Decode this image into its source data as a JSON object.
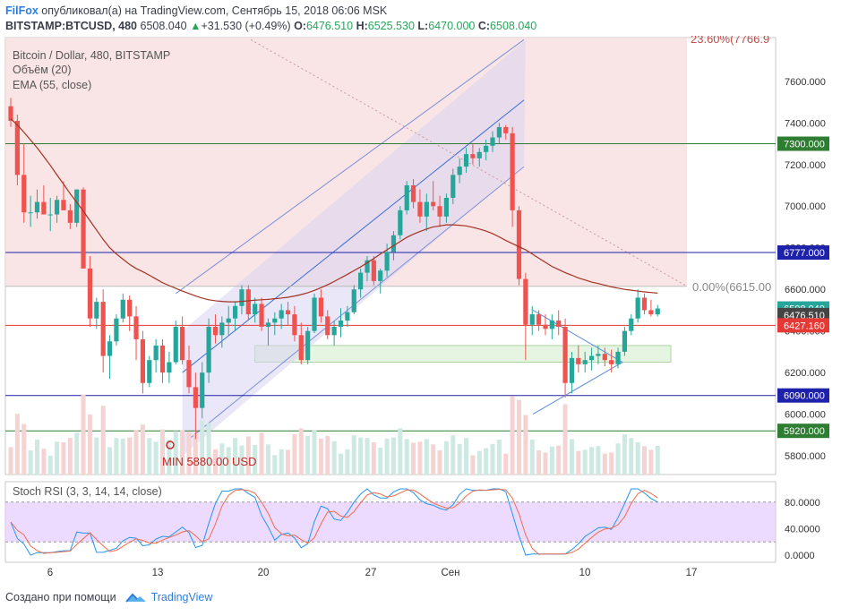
{
  "header": {
    "brand": "FilFox",
    "published_text": "опубликовал(а) на TradingView.com, Сентябрь 15, 2018 06:06 MSK",
    "symbol": "BITSTAMP:BTCUSD, 480",
    "price": "6508.040",
    "change": "+31.530 (+0.49%)",
    "o_label": "O:",
    "o_value": "6476.510",
    "h_label": "H:",
    "h_value": "6525.530",
    "l_label": "L:",
    "l_value": "6470.000",
    "c_label": "C:",
    "c_value": "6508.040"
  },
  "legend": {
    "title": "Bitcoin / Dollar, 480, BITSTAMP",
    "volume": "Объём (20)",
    "ema": "EMA (55, close)",
    "stoch": "Stoch RSI (3, 3, 14, 14, close)"
  },
  "annotations": {
    "fib_top": "23.60%(7766.9",
    "fib_zero": "0.00%(6615.00",
    "min_label": "MIN 5880.00 USD"
  },
  "footer": {
    "created_with": "Создано при помощи",
    "tradingview": "TradingView"
  },
  "chart_data": {
    "type": "candlestick",
    "y_axis": {
      "ticks": [
        5800,
        6000,
        6200,
        6400,
        6600,
        6800,
        7000,
        7200,
        7400,
        7600
      ],
      "range": [
        5710,
        7810
      ]
    },
    "x_axis": {
      "labels": [
        "6",
        "13",
        "20",
        "27",
        "Сен",
        "10",
        "17"
      ]
    },
    "price_labels": [
      {
        "value": 7300,
        "text": "7300.000",
        "color": "#2e7d32"
      },
      {
        "value": 6777,
        "text": "6777.000",
        "color": "#1e22aa"
      },
      {
        "value": 6508.04,
        "text": "6508.040",
        "color": "#26a69a"
      },
      {
        "value": 6476.51,
        "text": "6476.510",
        "color": "#444444"
      },
      {
        "value": 6427.16,
        "text": "6427.160",
        "color": "#e53935"
      },
      {
        "value": 6090,
        "text": "6090.000",
        "color": "#1e22aa"
      },
      {
        "value": 5920,
        "text": "5920.000",
        "color": "#2e7d32"
      }
    ],
    "horizontal_lines": [
      {
        "value": 7300,
        "color": "#2e7d32"
      },
      {
        "value": 6777,
        "color": "#1e22aa"
      },
      {
        "value": 6427.16,
        "color": "#e53935"
      },
      {
        "value": 6090,
        "color": "#1e22aa"
      },
      {
        "value": 5920,
        "color": "#2e7d32"
      }
    ],
    "support_zone": [
      6250,
      6330
    ],
    "stoch_axis": {
      "ticks": [
        0,
        40,
        80
      ],
      "labels": [
        "0.0000",
        "40.0000",
        "80.0000"
      ],
      "band": [
        20,
        80
      ]
    },
    "colors": {
      "up": "#26a69a",
      "down": "#ef5350",
      "ema": "#a33222",
      "stoch_k": "#2196f3",
      "stoch_d": "#ef6c4d",
      "channel": "#7b8fd8",
      "fib_zone": "#f7dede",
      "band": "#e6ccff"
    },
    "candles": [
      [
        7480,
        7520,
        7380,
        7410
      ],
      [
        7410,
        7440,
        7100,
        7150
      ],
      [
        7150,
        7300,
        6920,
        6970
      ],
      [
        6970,
        7050,
        6900,
        6970
      ],
      [
        6970,
        7080,
        6940,
        7020
      ],
      [
        7020,
        7100,
        6980,
        6960
      ],
      [
        6960,
        7040,
        6880,
        6960
      ],
      [
        6960,
        7050,
        6920,
        7030
      ],
      [
        7030,
        7120,
        6980,
        6980
      ],
      [
        6980,
        7010,
        6890,
        6920
      ],
      [
        6920,
        7080,
        6900,
        7080
      ],
      [
        7080,
        7090,
        6700,
        6700
      ],
      [
        6700,
        6760,
        6420,
        6460
      ],
      [
        6460,
        6560,
        6410,
        6540
      ],
      [
        6540,
        6600,
        6200,
        6280
      ],
      [
        6280,
        6380,
        6170,
        6350
      ],
      [
        6350,
        6480,
        6330,
        6460
      ],
      [
        6460,
        6580,
        6440,
        6550
      ],
      [
        6550,
        6570,
        6400,
        6470
      ],
      [
        6470,
        6520,
        6260,
        6360
      ],
      [
        6360,
        6400,
        6100,
        6150
      ],
      [
        6150,
        6280,
        6130,
        6260
      ],
      [
        6260,
        6360,
        6200,
        6330
      ],
      [
        6330,
        6360,
        6150,
        6200
      ],
      [
        6200,
        6300,
        6150,
        6250
      ],
      [
        6250,
        6450,
        6240,
        6420
      ],
      [
        6420,
        6470,
        6240,
        6260
      ],
      [
        6260,
        6330,
        6100,
        6130
      ],
      [
        6130,
        6200,
        5880,
        6030
      ],
      [
        6030,
        6250,
        5980,
        6200
      ],
      [
        6200,
        6460,
        6150,
        6420
      ],
      [
        6420,
        6480,
        6340,
        6380
      ],
      [
        6380,
        6470,
        6320,
        6440
      ],
      [
        6440,
        6520,
        6380,
        6460
      ],
      [
        6460,
        6540,
        6400,
        6520
      ],
      [
        6520,
        6620,
        6480,
        6600
      ],
      [
        6600,
        6620,
        6450,
        6480
      ],
      [
        6480,
        6560,
        6440,
        6530
      ],
      [
        6530,
        6560,
        6400,
        6420
      ],
      [
        6420,
        6460,
        6330,
        6440
      ],
      [
        6440,
        6490,
        6380,
        6460
      ],
      [
        6460,
        6530,
        6410,
        6500
      ],
      [
        6500,
        6540,
        6430,
        6480
      ],
      [
        6480,
        6520,
        6350,
        6380
      ],
      [
        6380,
        6440,
        6240,
        6260
      ],
      [
        6260,
        6420,
        6240,
        6400
      ],
      [
        6400,
        6580,
        6390,
        6560
      ],
      [
        6560,
        6600,
        6440,
        6470
      ],
      [
        6470,
        6500,
        6360,
        6380
      ],
      [
        6380,
        6450,
        6330,
        6420
      ],
      [
        6420,
        6510,
        6370,
        6450
      ],
      [
        6450,
        6520,
        6420,
        6490
      ],
      [
        6490,
        6620,
        6480,
        6600
      ],
      [
        6600,
        6700,
        6560,
        6680
      ],
      [
        6680,
        6760,
        6640,
        6740
      ],
      [
        6740,
        6760,
        6620,
        6640
      ],
      [
        6640,
        6700,
        6580,
        6690
      ],
      [
        6690,
        6820,
        6660,
        6780
      ],
      [
        6780,
        6880,
        6740,
        6860
      ],
      [
        6860,
        7000,
        6840,
        6980
      ],
      [
        6980,
        7120,
        6960,
        7100
      ],
      [
        7100,
        7130,
        6990,
        7020
      ],
      [
        7020,
        7080,
        6920,
        6950
      ],
      [
        6950,
        7060,
        6880,
        7020
      ],
      [
        7020,
        7120,
        6980,
        7000
      ],
      [
        7000,
        7050,
        6900,
        6950
      ],
      [
        6950,
        7060,
        6920,
        7040
      ],
      [
        7040,
        7180,
        7010,
        7150
      ],
      [
        7150,
        7230,
        7110,
        7190
      ],
      [
        7190,
        7280,
        7160,
        7250
      ],
      [
        7250,
        7300,
        7200,
        7230
      ],
      [
        7230,
        7280,
        7190,
        7260
      ],
      [
        7260,
        7320,
        7220,
        7290
      ],
      [
        7290,
        7360,
        7260,
        7330
      ],
      [
        7330,
        7400,
        7300,
        7380
      ],
      [
        7380,
        7390,
        7320,
        7350
      ],
      [
        7350,
        7380,
        6900,
        6980
      ],
      [
        6980,
        7000,
        6620,
        6650
      ],
      [
        6650,
        6680,
        6260,
        6430
      ],
      [
        6430,
        6520,
        6380,
        6480
      ],
      [
        6480,
        6500,
        6400,
        6430
      ],
      [
        6430,
        6480,
        6380,
        6410
      ],
      [
        6410,
        6480,
        6360,
        6450
      ],
      [
        6450,
        6500,
        6380,
        6420
      ],
      [
        6420,
        6460,
        6080,
        6150
      ],
      [
        6150,
        6300,
        6100,
        6270
      ],
      [
        6270,
        6330,
        6200,
        6240
      ],
      [
        6240,
        6300,
        6200,
        6260
      ],
      [
        6260,
        6320,
        6210,
        6280
      ],
      [
        6280,
        6330,
        6240,
        6290
      ],
      [
        6290,
        6320,
        6230,
        6260
      ],
      [
        6260,
        6310,
        6200,
        6240
      ],
      [
        6240,
        6320,
        6220,
        6300
      ],
      [
        6300,
        6420,
        6280,
        6400
      ],
      [
        6400,
        6480,
        6380,
        6460
      ],
      [
        6460,
        6600,
        6440,
        6560
      ],
      [
        6560,
        6580,
        6480,
        6500
      ],
      [
        6500,
        6550,
        6470,
        6480
      ],
      [
        6480,
        6525,
        6470,
        6508
      ]
    ],
    "ema": [
      7420,
      7390,
      7355,
      7318,
      7280,
      7238,
      7196,
      7150,
      7106,
      7060,
      7018,
      6976,
      6930,
      6885,
      6840,
      6800,
      6770,
      6745,
      6720,
      6700,
      6685,
      6668,
      6650,
      6632,
      6618,
      6605,
      6592,
      6580,
      6568,
      6558,
      6550,
      6545,
      6542,
      6540,
      6540,
      6542,
      6545,
      6548,
      6550,
      6552,
      6555,
      6558,
      6562,
      6568,
      6575,
      6584,
      6595,
      6608,
      6622,
      6638,
      6655,
      6672,
      6690,
      6708,
      6728,
      6748,
      6770,
      6790,
      6810,
      6830,
      6850,
      6865,
      6878,
      6890,
      6900,
      6905,
      6910,
      6910,
      6908,
      6905,
      6898,
      6890,
      6880,
      6868,
      6852,
      6835,
      6820,
      6805,
      6790,
      6770,
      6750,
      6730,
      6710,
      6695,
      6680,
      6668,
      6655,
      6645,
      6635,
      6628,
      6620,
      6612,
      6606,
      6600,
      6596,
      6592,
      6588,
      6585,
      6582
    ]
  }
}
